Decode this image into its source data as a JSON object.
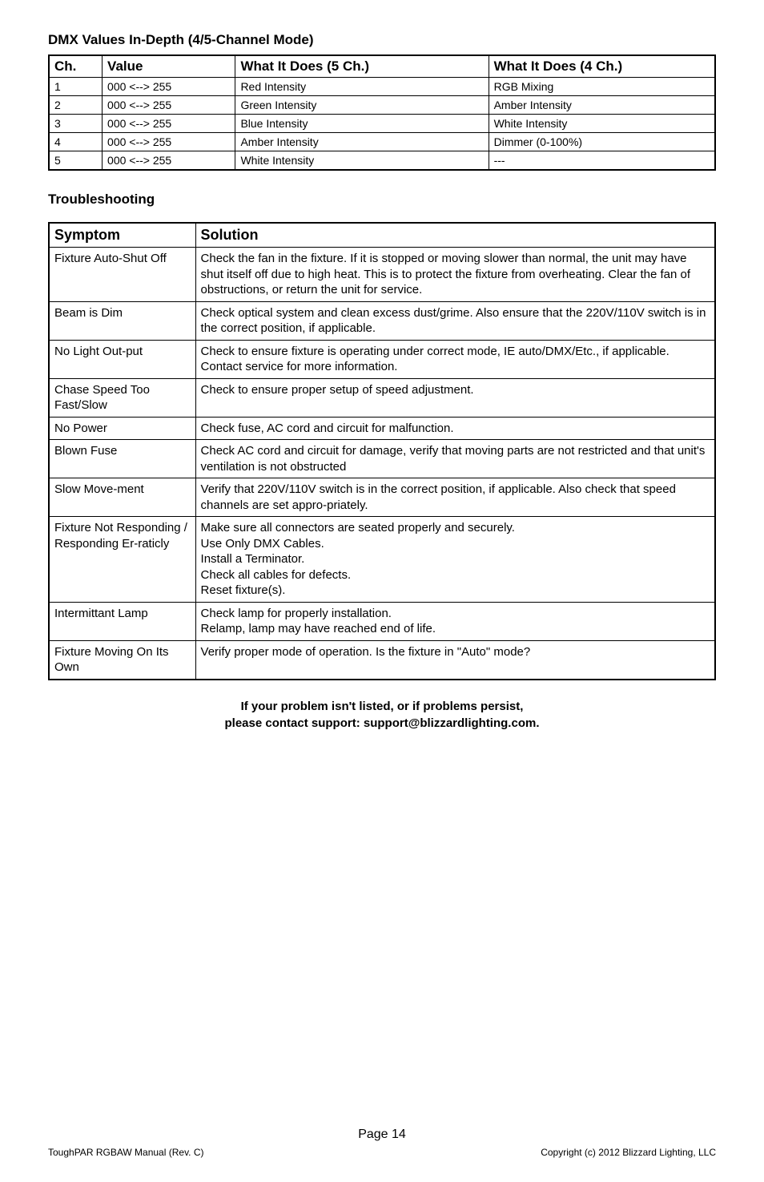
{
  "dmx_section": {
    "title": "DMX Values In-Depth (4/5-Channel Mode)",
    "headers": [
      "Ch.",
      "Value",
      "What It Does (5 Ch.)",
      "What It Does (4 Ch.)"
    ],
    "rows": [
      [
        "1",
        "000 <--> 255",
        "Red Intensity",
        "RGB Mixing"
      ],
      [
        "2",
        "000 <--> 255",
        "Green Intensity",
        "Amber Intensity"
      ],
      [
        "3",
        "000 <--> 255",
        "Blue Intensity",
        "White Intensity"
      ],
      [
        "4",
        "000 <--> 255",
        "Amber Intensity",
        "Dimmer (0-100%)"
      ],
      [
        "5",
        "000 <--> 255",
        "White Intensity",
        "---"
      ]
    ]
  },
  "troubleshoot_section": {
    "title": "Troubleshooting",
    "headers": [
      "Symptom",
      "Solution"
    ],
    "rows": [
      [
        "Fixture Auto-Shut Off",
        "Check the fan in the fixture.  If it is stopped or moving slower than normal, the unit may have shut itself off due to high heat.  This is to protect the fixture from overheating.  Clear the fan of obstructions, or return the unit for service."
      ],
      [
        "Beam is Dim",
        "Check optical system and clean excess dust/grime.  Also ensure that the 220V/110V switch is in the correct position, if applicable."
      ],
      [
        "No Light Out-put",
        "Check to ensure fixture is operating under correct mode, IE auto/DMX/Etc., if applicable.  Contact service for more information."
      ],
      [
        "Chase Speed Too Fast/Slow",
        "Check to ensure proper setup of speed adjustment."
      ],
      [
        "No Power",
        "Check fuse, AC cord and circuit for malfunction."
      ],
      [
        "Blown Fuse",
        "Check AC cord and circuit for damage, verify that moving parts are not restricted and that unit's ventilation is not obstructed"
      ],
      [
        "Slow Move-ment",
        "Verify that 220V/110V switch is in the correct position, if applicable.  Also check that speed channels are set appro-priately."
      ],
      [
        "Fixture Not Responding / Responding Er-raticly",
        "Make sure all connectors are seated properly and securely.\nUse Only DMX Cables.\nInstall a Terminator.\nCheck all cables for defects.\nReset fixture(s)."
      ],
      [
        "Intermittant Lamp",
        "Check lamp for properly installation.\nRelamp, lamp may have reached end of life."
      ],
      [
        "Fixture Moving On Its Own",
        "Verify proper mode of operation.  Is the fixture in \"Auto\" mode?"
      ]
    ]
  },
  "footer_note": {
    "line1": "If your problem isn't listed, or if problems persist,",
    "line2": "please contact support:  support@blizzardlighting.com."
  },
  "page_footer": {
    "page_number": "Page 14",
    "left": "ToughPAR RGBAW Manual (Rev. C)",
    "right": "Copyright (c) 2012 Blizzard Lighting, LLC"
  }
}
